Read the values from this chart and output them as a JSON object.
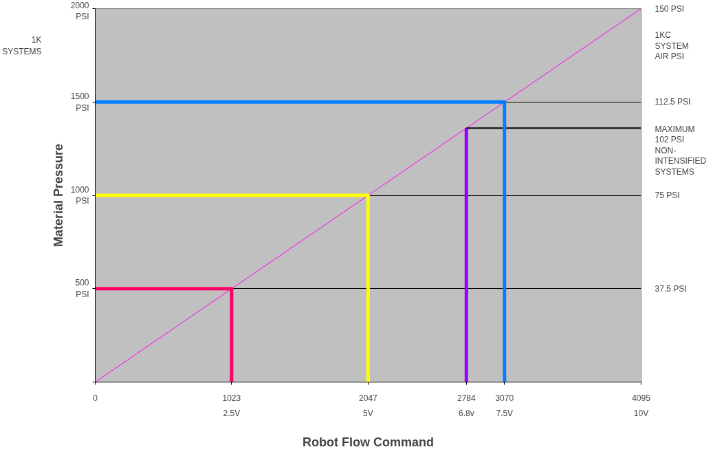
{
  "chart_data": {
    "type": "line",
    "xlabel": "Robot Flow Command",
    "ylabel": "Material Pressure",
    "xlim": [
      0,
      4095
    ],
    "ylim": [
      0,
      2000
    ],
    "y2lim": [
      0,
      150
    ],
    "xticks": [
      0,
      1023,
      2047,
      2784,
      3070,
      4095
    ],
    "yticks": [
      {
        "value": 0,
        "label": null
      },
      {
        "value": 500,
        "label": "500\nPSI"
      },
      {
        "value": 1000,
        "label": "1000\nPSI"
      },
      {
        "value": 1500,
        "label": "1500\nPSI"
      },
      {
        "value": 2000,
        "label": "2000\nPSI"
      }
    ],
    "y2ticks": [
      {
        "value": 37.5,
        "label": "37.5 PSI"
      },
      {
        "value": 75,
        "label": "75 PSI"
      },
      {
        "value": 112.5,
        "label": "112.5 PSI"
      },
      {
        "value": 150,
        "label": "150 PSI"
      }
    ],
    "grid": "y",
    "series": [
      {
        "color": "#ff00ff",
        "x": [
          0,
          4095
        ],
        "values": [
          0,
          2000
        ]
      },
      {
        "color": "#ff0066",
        "x": [
          0,
          1023,
          1023
        ],
        "values": [
          500,
          500,
          0
        ]
      },
      {
        "color": "#ffff00",
        "x": [
          0,
          2047,
          2047
        ],
        "values": [
          1000,
          1000,
          0
        ]
      },
      {
        "color": "#9900ff",
        "x": [
          2784,
          2784
        ],
        "values": [
          0,
          1360
        ]
      },
      {
        "color": "#000000",
        "x": [
          2784,
          4095
        ],
        "values": [
          1360,
          1360
        ]
      },
      {
        "color": "#0080ff",
        "x": [
          0,
          3070,
          3070
        ],
        "values": [
          1500,
          1500,
          0
        ]
      }
    ],
    "y2label": "1KC\nSYSTEM\nAIR PSI",
    "annotations": [
      "2.5V",
      "5V",
      "6.8v",
      "7.5V",
      "10V",
      "1K\nSYSTEMS",
      "MAXIMUM\n102 PSI\nNON-\nINTENSIFIED\nSYSTEMS"
    ]
  }
}
